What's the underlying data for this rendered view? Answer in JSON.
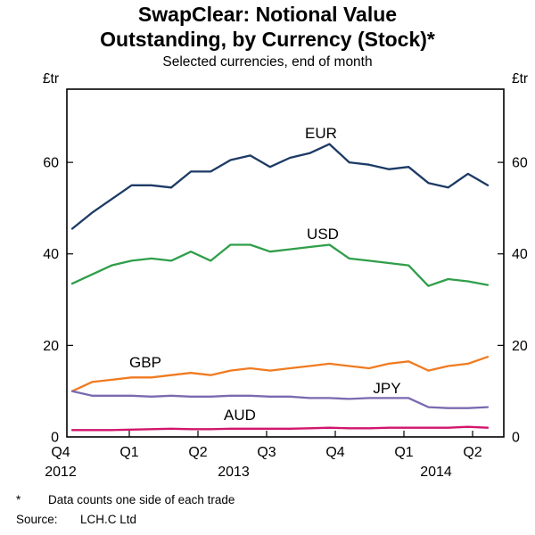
{
  "header": {
    "title_line1": "SwapClear: Notional Value",
    "title_line2": "Outstanding, by Currency (Stock)*",
    "subtitle": "Selected currencies, end of month"
  },
  "footnotes": {
    "marker": "*",
    "note": "Data counts one side of each trade",
    "source_label": "Source:",
    "source": "LCH.C Ltd"
  },
  "chart_data": {
    "type": "line",
    "title": "SwapClear: Notional Value Outstanding, by Currency (Stock)*",
    "subtitle": "Selected currencies, end of month",
    "xlabel": "",
    "ylabel": "£tr",
    "unit_label_left": "£tr",
    "unit_label_right": "£tr",
    "ylim": [
      0,
      76
    ],
    "y_ticks": [
      0,
      20,
      40,
      60
    ],
    "grid": false,
    "legend_position": "inline-labels",
    "x_frequency": "monthly",
    "x_quarter_labels": [
      "Q4",
      "Q1",
      "Q2",
      "Q3",
      "Q4",
      "Q1",
      "Q2"
    ],
    "x_year_labels": [
      "2012",
      "2013",
      "2014"
    ],
    "series": [
      {
        "name": "EUR",
        "color": "#1d3a66",
        "values": [
          45.5,
          49,
          52,
          55,
          55,
          54.5,
          58,
          58,
          60.5,
          61.5,
          59,
          61,
          62,
          64,
          60,
          59.5,
          58.5,
          59,
          55.5,
          54.5,
          57.5,
          55
        ]
      },
      {
        "name": "USD",
        "color": "#2f9e49",
        "values": [
          33.5,
          35.5,
          37.5,
          38.5,
          39,
          38.5,
          40.5,
          38.5,
          42,
          42,
          40.5,
          41,
          41.5,
          42,
          39,
          38.5,
          38,
          37.5,
          33,
          34.5,
          34,
          33.2
        ]
      },
      {
        "name": "GBP",
        "color": "#f07b20",
        "values": [
          10,
          12,
          12.5,
          13,
          13,
          13.5,
          14,
          13.5,
          14.5,
          15,
          14.5,
          15,
          15.5,
          16,
          15.5,
          15,
          16,
          16.5,
          14.5,
          15.5,
          16,
          17.5
        ]
      },
      {
        "name": "JPY",
        "color": "#7a6ab0",
        "values": [
          10,
          9,
          9,
          9,
          8.8,
          9,
          8.8,
          8.8,
          9,
          9,
          8.8,
          8.8,
          8.5,
          8.5,
          8.3,
          8.5,
          8.5,
          8.5,
          6.5,
          6.3,
          6.3,
          6.5
        ]
      },
      {
        "name": "AUD",
        "color": "#d1166d",
        "values": [
          1.5,
          1.5,
          1.5,
          1.6,
          1.7,
          1.8,
          1.7,
          1.7,
          1.8,
          1.8,
          1.8,
          1.8,
          1.9,
          2,
          1.9,
          1.9,
          2,
          2,
          2,
          2,
          2.2,
          2
        ]
      }
    ]
  }
}
